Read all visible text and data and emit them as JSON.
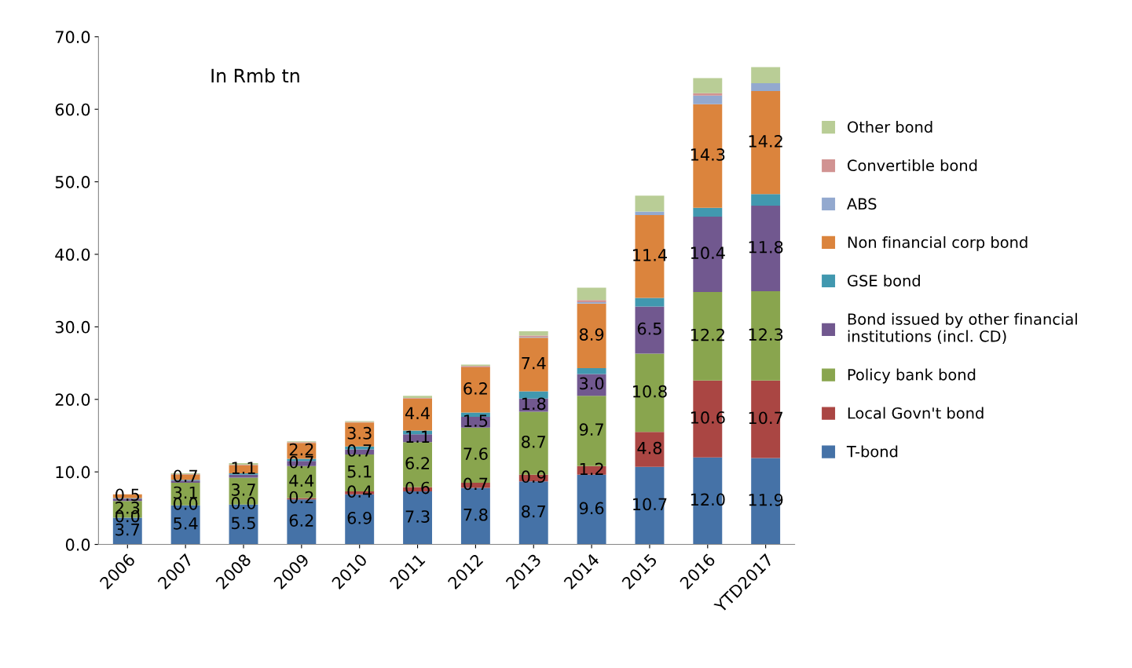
{
  "chart_data": {
    "type": "bar",
    "stacked": true,
    "categories": [
      "2006",
      "2007",
      "2008",
      "2009",
      "2010",
      "2011",
      "2012",
      "2013",
      "2014",
      "2015",
      "2016",
      "YTD2017"
    ],
    "annotations": [
      "In Rmb tn"
    ],
    "ylim": [
      0,
      70
    ],
    "yticks": [
      {
        "value": 0,
        "label": "0.0"
      },
      {
        "value": 10,
        "label": "10.0"
      },
      {
        "value": 20,
        "label": "20.0"
      },
      {
        "value": 30,
        "label": "30.0"
      },
      {
        "value": 40,
        "label": "40.0"
      },
      {
        "value": 50,
        "label": "50.0"
      },
      {
        "value": 60,
        "label": "60.0"
      },
      {
        "value": 70,
        "label": "70.0"
      }
    ],
    "grid": false,
    "legend": "right",
    "series": [
      {
        "name": "T-bond",
        "color": "#4572a7",
        "values": [
          3.7,
          5.4,
          5.5,
          6.2,
          6.9,
          7.3,
          7.8,
          8.7,
          9.6,
          10.7,
          12.0,
          11.9
        ],
        "value_labels": [
          "3.7",
          "5.4",
          "5.5",
          "6.2",
          "6.9",
          "7.3",
          "7.8",
          "8.7",
          "9.6",
          "10.7",
          "12.0",
          "11.9"
        ]
      },
      {
        "name": "Local Govn't bond",
        "color": "#aa4643",
        "values": [
          0.0,
          0.0,
          0.0,
          0.2,
          0.4,
          0.6,
          0.7,
          0.9,
          1.2,
          4.8,
          10.6,
          10.7
        ],
        "value_labels": [
          "0.0",
          "0.0",
          "0.0",
          "0.2",
          "0.4",
          "0.6",
          "0.7",
          "0.9",
          "1.2",
          "4.8",
          "10.6",
          "10.7"
        ]
      },
      {
        "name": "Policy bank bond",
        "color": "#89a54e",
        "values": [
          2.3,
          3.1,
          3.7,
          4.4,
          5.1,
          6.2,
          7.6,
          8.7,
          9.7,
          10.8,
          12.2,
          12.3
        ],
        "value_labels": [
          "2.3",
          "3.1",
          "3.7",
          "4.4",
          "5.1",
          "6.2",
          "7.6",
          "8.7",
          "9.7",
          "10.8",
          "12.2",
          "12.3"
        ]
      },
      {
        "name": "Bond issued by other financial\ninstitutions (incl. CD)",
        "color": "#71588f",
        "values": [
          0.3,
          0.3,
          0.4,
          0.7,
          0.7,
          1.1,
          1.5,
          1.8,
          3.0,
          6.5,
          10.4,
          11.8
        ],
        "value_labels": [
          null,
          null,
          null,
          "0.7",
          "0.7",
          "1.1",
          "1.5",
          "1.8",
          "3.0",
          "6.5",
          "10.4",
          "11.8"
        ]
      },
      {
        "name": "GSE bond",
        "color": "#4198af",
        "values": [
          0.1,
          0.1,
          0.2,
          0.3,
          0.4,
          0.5,
          0.6,
          1.0,
          0.8,
          1.2,
          1.2,
          1.6
        ]
      },
      {
        "name": "Non financial corp bond",
        "color": "#db843d",
        "values": [
          0.5,
          0.7,
          1.1,
          2.2,
          3.3,
          4.4,
          6.2,
          7.4,
          8.9,
          11.4,
          14.3,
          14.2
        ],
        "value_labels": [
          "0.5",
          "0.7",
          "1.1",
          "2.2",
          "3.3",
          "4.4",
          "6.2",
          "7.4",
          "8.9",
          "11.4",
          "14.3",
          "14.2"
        ]
      },
      {
        "name": "ABS",
        "color": "#93a9cf",
        "values": [
          0.0,
          0.0,
          0.0,
          0.0,
          0.0,
          0.0,
          0.0,
          0.1,
          0.2,
          0.5,
          1.2,
          1.1
        ]
      },
      {
        "name": "Convertible bond",
        "color": "#d19392",
        "values": [
          0.0,
          0.1,
          0.1,
          0.1,
          0.1,
          0.1,
          0.2,
          0.2,
          0.3,
          null,
          0.3,
          0.0
        ]
      },
      {
        "name": "Other bond",
        "color": "#b9cd96",
        "values": [
          0.0,
          0.1,
          0.2,
          0.1,
          0.1,
          0.3,
          0.2,
          0.6,
          1.7,
          2.2,
          2.1,
          2.2
        ]
      }
    ]
  }
}
